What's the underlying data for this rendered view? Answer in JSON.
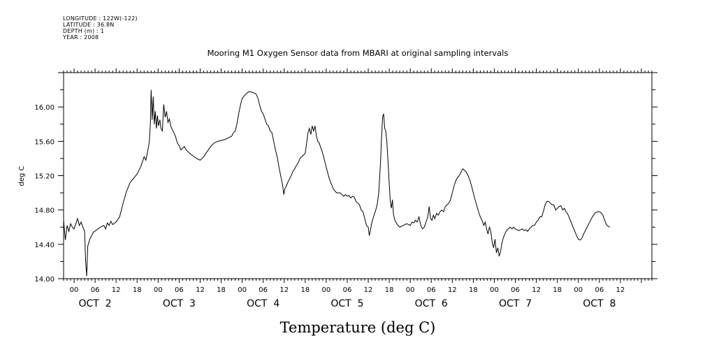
{
  "header": {
    "longitude": "LONGITUDE : 122W(-122)",
    "latitude": "LATITUDE : 36.8N",
    "depth": "DEPTH (m) : 1",
    "year": "YEAR : 2008"
  },
  "chart_data": {
    "type": "line",
    "title": "Mooring M1 Oxygen Sensor data from MBARI at original sampling intervals",
    "xlabel": "Temperature (deg C)",
    "ylabel": "deg C",
    "ylim": [
      14.0,
      16.4
    ],
    "xlim_hours": [
      -3,
      165
    ],
    "y_ticks": [
      14.0,
      14.4,
      14.8,
      15.2,
      15.6,
      16.0
    ],
    "y_tick_labels": [
      "14.00",
      "14.40",
      "14.80",
      "15.20",
      "15.60",
      "16.00"
    ],
    "x_hour_labels": [
      "00",
      "06",
      "12",
      "18",
      "00",
      "06",
      "12",
      "18",
      "00",
      "06",
      "12",
      "18",
      "00",
      "06",
      "12",
      "18",
      "00",
      "06",
      "12",
      "18",
      "00",
      "06",
      "12",
      "18",
      "00",
      "06",
      "12"
    ],
    "day_labels": [
      "OCT  2",
      "OCT  3",
      "OCT  4",
      "OCT  5",
      "OCT  6",
      "OCT  7",
      "OCT  8"
    ],
    "grid": false,
    "series": [
      {
        "points": [
          [
            -3,
            14.68
          ],
          [
            -2.5,
            14.45
          ],
          [
            -2,
            14.62
          ],
          [
            -1.5,
            14.55
          ],
          [
            -1,
            14.64
          ],
          [
            -0.5,
            14.6
          ],
          [
            0,
            14.58
          ],
          [
            0.5,
            14.64
          ],
          [
            1,
            14.7
          ],
          [
            1.5,
            14.62
          ],
          [
            2,
            14.66
          ],
          [
            2.5,
            14.6
          ],
          [
            3,
            14.55
          ],
          [
            3.3,
            14.2
          ],
          [
            3.6,
            14.03
          ],
          [
            3.9,
            14.38
          ],
          [
            4.5,
            14.46
          ],
          [
            5.5,
            14.54
          ],
          [
            6.5,
            14.57
          ],
          [
            7.5,
            14.6
          ],
          [
            8.5,
            14.62
          ],
          [
            9,
            14.58
          ],
          [
            9.5,
            14.65
          ],
          [
            10,
            14.62
          ],
          [
            10.5,
            14.67
          ],
          [
            11,
            14.63
          ],
          [
            12,
            14.66
          ],
          [
            13,
            14.72
          ],
          [
            14,
            14.88
          ],
          [
            15,
            15.02
          ],
          [
            16,
            15.12
          ],
          [
            17,
            15.17
          ],
          [
            18,
            15.22
          ],
          [
            19,
            15.3
          ],
          [
            19.5,
            15.36
          ],
          [
            20,
            15.42
          ],
          [
            20.5,
            15.38
          ],
          [
            21,
            15.48
          ],
          [
            21.5,
            15.6
          ],
          [
            21.8,
            15.82
          ],
          [
            22,
            16.2
          ],
          [
            22.3,
            15.85
          ],
          [
            22.6,
            16.12
          ],
          [
            22.9,
            15.8
          ],
          [
            23.2,
            15.95
          ],
          [
            23.5,
            15.75
          ],
          [
            23.8,
            15.9
          ],
          [
            24.1,
            15.78
          ],
          [
            24.5,
            15.85
          ],
          [
            24.8,
            15.75
          ],
          [
            25.2,
            15.72
          ],
          [
            25.6,
            16.03
          ],
          [
            26,
            15.88
          ],
          [
            26.4,
            15.95
          ],
          [
            26.8,
            15.82
          ],
          [
            27.2,
            15.86
          ],
          [
            27.6,
            15.78
          ],
          [
            28,
            15.74
          ],
          [
            28.5,
            15.7
          ],
          [
            29,
            15.65
          ],
          [
            29.5,
            15.58
          ],
          [
            30,
            15.55
          ],
          [
            30.5,
            15.5
          ],
          [
            31,
            15.52
          ],
          [
            31.5,
            15.54
          ],
          [
            32,
            15.5
          ],
          [
            33,
            15.46
          ],
          [
            34,
            15.43
          ],
          [
            35,
            15.4
          ],
          [
            36,
            15.38
          ],
          [
            37,
            15.42
          ],
          [
            38,
            15.48
          ],
          [
            39,
            15.54
          ],
          [
            40,
            15.58
          ],
          [
            41,
            15.6
          ],
          [
            42,
            15.61
          ],
          [
            43,
            15.62
          ],
          [
            44,
            15.64
          ],
          [
            45,
            15.66
          ],
          [
            45.5,
            15.7
          ],
          [
            46,
            15.72
          ],
          [
            46.5,
            15.8
          ],
          [
            47,
            15.92
          ],
          [
            47.5,
            16.02
          ],
          [
            48,
            16.1
          ],
          [
            49,
            16.15
          ],
          [
            50,
            16.18
          ],
          [
            51,
            16.17
          ],
          [
            52,
            16.15
          ],
          [
            52.5,
            16.1
          ],
          [
            53,
            16.02
          ],
          [
            53.5,
            15.95
          ],
          [
            54,
            15.92
          ],
          [
            54.5,
            15.86
          ],
          [
            55,
            15.8
          ],
          [
            55.5,
            15.78
          ],
          [
            56,
            15.72
          ],
          [
            56.5,
            15.7
          ],
          [
            57,
            15.6
          ],
          [
            57.5,
            15.5
          ],
          [
            58,
            15.42
          ],
          [
            58.5,
            15.3
          ],
          [
            59,
            15.2
          ],
          [
            59.5,
            15.1
          ],
          [
            59.9,
            14.98
          ],
          [
            60.2,
            15.05
          ],
          [
            60.6,
            15.08
          ],
          [
            61,
            15.12
          ],
          [
            61.5,
            15.16
          ],
          [
            62,
            15.2
          ],
          [
            62.5,
            15.25
          ],
          [
            63,
            15.28
          ],
          [
            63.5,
            15.32
          ],
          [
            64,
            15.35
          ],
          [
            64.5,
            15.4
          ],
          [
            65,
            15.42
          ],
          [
            65.5,
            15.44
          ],
          [
            66,
            15.46
          ],
          [
            66.4,
            15.58
          ],
          [
            66.8,
            15.7
          ],
          [
            67.2,
            15.75
          ],
          [
            67.6,
            15.68
          ],
          [
            68,
            15.78
          ],
          [
            68.4,
            15.72
          ],
          [
            68.8,
            15.78
          ],
          [
            69.2,
            15.66
          ],
          [
            69.6,
            15.6
          ],
          [
            70,
            15.58
          ],
          [
            70.5,
            15.52
          ],
          [
            71,
            15.46
          ],
          [
            71.5,
            15.38
          ],
          [
            72,
            15.3
          ],
          [
            72.5,
            15.22
          ],
          [
            73,
            15.15
          ],
          [
            73.5,
            15.1
          ],
          [
            74,
            15.05
          ],
          [
            74.5,
            15.02
          ],
          [
            75,
            15.0
          ],
          [
            76,
            15.0
          ],
          [
            76.5,
            14.98
          ],
          [
            77,
            14.96
          ],
          [
            77.5,
            14.98
          ],
          [
            78,
            14.96
          ],
          [
            78.5,
            14.97
          ],
          [
            79,
            14.94
          ],
          [
            79.5,
            14.96
          ],
          [
            80,
            14.95
          ],
          [
            80.5,
            14.9
          ],
          [
            81,
            14.88
          ],
          [
            81.5,
            14.86
          ],
          [
            82,
            14.8
          ],
          [
            82.5,
            14.78
          ],
          [
            83,
            14.7
          ],
          [
            83.5,
            14.62
          ],
          [
            84,
            14.6
          ],
          [
            84.3,
            14.5
          ],
          [
            84.6,
            14.56
          ],
          [
            85,
            14.65
          ],
          [
            85.5,
            14.72
          ],
          [
            86,
            14.78
          ],
          [
            86.5,
            14.85
          ],
          [
            87,
            15.0
          ],
          [
            87.5,
            15.35
          ],
          [
            87.8,
            15.65
          ],
          [
            88.1,
            15.88
          ],
          [
            88.4,
            15.92
          ],
          [
            88.7,
            15.75
          ],
          [
            89,
            15.72
          ],
          [
            89.3,
            15.6
          ],
          [
            89.6,
            15.4
          ],
          [
            90,
            15.1
          ],
          [
            90.3,
            14.9
          ],
          [
            90.6,
            14.82
          ],
          [
            90.9,
            14.92
          ],
          [
            91.2,
            14.75
          ],
          [
            91.6,
            14.68
          ],
          [
            92,
            14.65
          ],
          [
            92.5,
            14.62
          ],
          [
            93,
            14.6
          ],
          [
            94,
            14.62
          ],
          [
            95,
            14.64
          ],
          [
            96,
            14.62
          ],
          [
            96.5,
            14.66
          ],
          [
            97,
            14.65
          ],
          [
            97.5,
            14.68
          ],
          [
            98,
            14.66
          ],
          [
            98.5,
            14.72
          ],
          [
            99,
            14.62
          ],
          [
            99.5,
            14.58
          ],
          [
            100,
            14.6
          ],
          [
            100.5,
            14.66
          ],
          [
            101,
            14.72
          ],
          [
            101.4,
            14.84
          ],
          [
            101.8,
            14.7
          ],
          [
            102.2,
            14.68
          ],
          [
            102.6,
            14.74
          ],
          [
            103,
            14.7
          ],
          [
            103.5,
            14.76
          ],
          [
            104,
            14.74
          ],
          [
            104.5,
            14.78
          ],
          [
            105,
            14.8
          ],
          [
            105.5,
            14.78
          ],
          [
            106,
            14.84
          ],
          [
            106.5,
            14.86
          ],
          [
            107,
            14.88
          ],
          [
            107.5,
            14.92
          ],
          [
            108,
            15.0
          ],
          [
            108.5,
            15.08
          ],
          [
            109,
            15.14
          ],
          [
            109.5,
            15.18
          ],
          [
            110,
            15.2
          ],
          [
            110.5,
            15.24
          ],
          [
            111,
            15.28
          ],
          [
            111.5,
            15.26
          ],
          [
            112,
            15.24
          ],
          [
            112.5,
            15.2
          ],
          [
            113,
            15.15
          ],
          [
            113.5,
            15.08
          ],
          [
            114,
            15.0
          ],
          [
            114.5,
            14.92
          ],
          [
            115,
            14.85
          ],
          [
            115.5,
            14.78
          ],
          [
            116,
            14.72
          ],
          [
            116.5,
            14.68
          ],
          [
            117,
            14.62
          ],
          [
            117.4,
            14.66
          ],
          [
            117.8,
            14.58
          ],
          [
            118.2,
            14.52
          ],
          [
            118.6,
            14.6
          ],
          [
            119,
            14.55
          ],
          [
            119.4,
            14.42
          ],
          [
            119.8,
            14.36
          ],
          [
            120.2,
            14.46
          ],
          [
            120.6,
            14.3
          ],
          [
            121,
            14.36
          ],
          [
            121.4,
            14.26
          ],
          [
            121.8,
            14.32
          ],
          [
            122.2,
            14.42
          ],
          [
            122.6,
            14.48
          ],
          [
            123,
            14.52
          ],
          [
            123.5,
            14.56
          ],
          [
            124,
            14.58
          ],
          [
            124.5,
            14.6
          ],
          [
            125,
            14.58
          ],
          [
            125.5,
            14.6
          ],
          [
            126,
            14.58
          ],
          [
            127,
            14.56
          ],
          [
            128,
            14.58
          ],
          [
            128.5,
            14.56
          ],
          [
            129,
            14.57
          ],
          [
            129.5,
            14.55
          ],
          [
            130,
            14.58
          ],
          [
            130.5,
            14.6
          ],
          [
            131,
            14.62
          ],
          [
            131.5,
            14.62
          ],
          [
            132,
            14.66
          ],
          [
            132.5,
            14.68
          ],
          [
            133,
            14.72
          ],
          [
            133.5,
            14.72
          ],
          [
            134,
            14.78
          ],
          [
            134.5,
            14.86
          ],
          [
            135,
            14.9
          ],
          [
            135.5,
            14.9
          ],
          [
            136,
            14.88
          ],
          [
            136.5,
            14.86
          ],
          [
            137,
            14.86
          ],
          [
            137.5,
            14.8
          ],
          [
            138,
            14.82
          ],
          [
            138.5,
            14.84
          ],
          [
            139,
            14.85
          ],
          [
            139.5,
            14.8
          ],
          [
            140,
            14.82
          ],
          [
            140.5,
            14.78
          ],
          [
            141,
            14.75
          ],
          [
            141.5,
            14.7
          ],
          [
            142,
            14.65
          ],
          [
            142.5,
            14.6
          ],
          [
            143,
            14.55
          ],
          [
            143.5,
            14.5
          ],
          [
            144,
            14.46
          ],
          [
            144.5,
            14.45
          ],
          [
            145,
            14.47
          ],
          [
            145.5,
            14.52
          ],
          [
            146,
            14.56
          ],
          [
            146.5,
            14.6
          ],
          [
            147,
            14.64
          ],
          [
            147.5,
            14.68
          ],
          [
            148,
            14.72
          ],
          [
            148.5,
            14.75
          ],
          [
            149,
            14.77
          ],
          [
            149.5,
            14.78
          ],
          [
            150,
            14.78
          ],
          [
            150.5,
            14.77
          ],
          [
            151,
            14.74
          ],
          [
            151.5,
            14.68
          ],
          [
            152,
            14.63
          ],
          [
            152.5,
            14.61
          ],
          [
            153,
            14.6
          ]
        ]
      }
    ]
  }
}
